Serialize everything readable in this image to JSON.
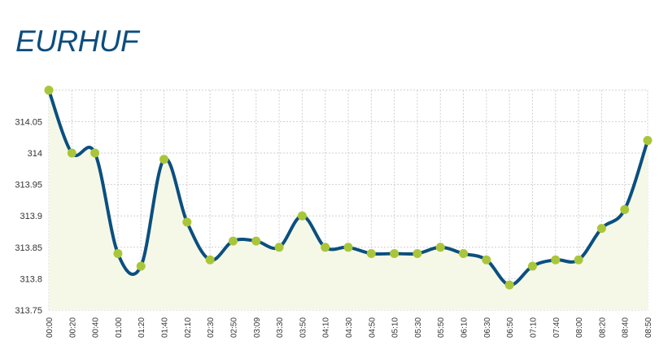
{
  "chart_data": {
    "type": "line",
    "title": "EURHUF",
    "xlabel": "",
    "ylabel": "",
    "ylim": [
      313.75,
      314.1
    ],
    "yticks": [
      "313.75",
      "313.8",
      "313.85",
      "313.9",
      "313.95",
      "314",
      "314.05"
    ],
    "grid": true,
    "categories": [
      "00:00",
      "00:20",
      "00:40",
      "01:00",
      "01:20",
      "01:40",
      "02:10",
      "02:30",
      "02:50",
      "03:09",
      "03:30",
      "03:50",
      "04:10",
      "04:30",
      "04:50",
      "05:10",
      "05:30",
      "05:50",
      "06:10",
      "06:30",
      "06:50",
      "07:10",
      "07:40",
      "08:00",
      "08:20",
      "08:40",
      "08:50"
    ],
    "series": [
      {
        "name": "EURHUF",
        "values": [
          314.1,
          314.0,
          314.0,
          313.84,
          313.82,
          313.99,
          313.89,
          313.83,
          313.86,
          313.86,
          313.85,
          313.9,
          313.85,
          313.85,
          313.84,
          313.84,
          313.84,
          313.85,
          313.84,
          313.83,
          313.79,
          313.82,
          313.83,
          313.83,
          313.88,
          313.91,
          314.02
        ]
      }
    ],
    "colors": {
      "line": "#0b4f7f",
      "marker": "#a9c63b",
      "fill": "#f5f8e7",
      "grid": "#cfcfcf"
    }
  }
}
